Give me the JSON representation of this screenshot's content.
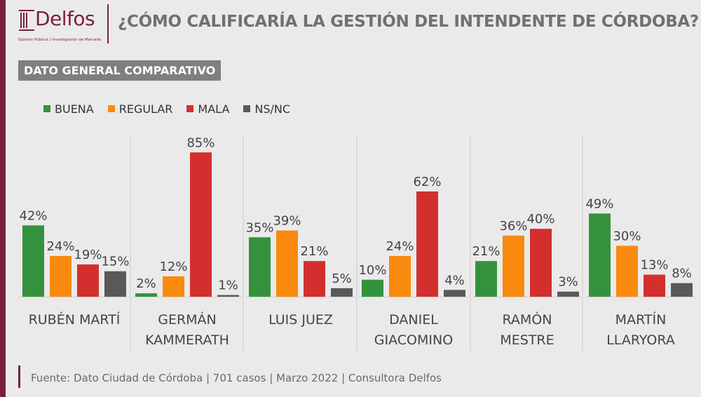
{
  "brand": {
    "name": "Delfos",
    "tagline": "Opinión Pública | Investigación de Mercado"
  },
  "header": {
    "title": "¿CÓMO CALIFICARÍA LA GESTIÓN DEL INTENDENTE DE CÓRDOBA?"
  },
  "subtitle": "DATO GENERAL COMPARATIVO",
  "colors": {
    "brand": "#7a1f3d",
    "buena": "#34923d",
    "regular": "#f98a0e",
    "mala": "#d32f2f",
    "nsnc": "#595959"
  },
  "footer": {
    "source": "Fuente: Dato Ciudad de Córdoba | 701 casos | Marzo 2022 | Consultora Delfos"
  },
  "chart_data": {
    "type": "bar",
    "title": "¿CÓMO CALIFICARÍA LA GESTIÓN DEL INTENDENTE DE CÓRDOBA?",
    "legend_position": "top-left",
    "grid": false,
    "ylim": [
      0,
      100
    ],
    "unit": "%",
    "categories": [
      [
        "RUBÉN MARTÍ"
      ],
      [
        "GERMÁN",
        "KAMMERATH"
      ],
      [
        "LUIS JUEZ"
      ],
      [
        "DANIEL",
        "GIACOMINO"
      ],
      [
        "RAMÓN",
        "MESTRE"
      ],
      [
        "MARTÍN",
        "LLARYORA"
      ]
    ],
    "series": [
      {
        "name": "BUENA",
        "color": "#34923d",
        "values": [
          42,
          2,
          35,
          10,
          21,
          49
        ]
      },
      {
        "name": "REGULAR",
        "color": "#f98a0e",
        "values": [
          24,
          12,
          39,
          24,
          36,
          30
        ]
      },
      {
        "name": "MALA",
        "color": "#d32f2f",
        "values": [
          19,
          85,
          21,
          62,
          40,
          13
        ]
      },
      {
        "name": "NS/NC",
        "color": "#595959",
        "values": [
          15,
          1,
          5,
          4,
          3,
          8
        ]
      }
    ]
  }
}
